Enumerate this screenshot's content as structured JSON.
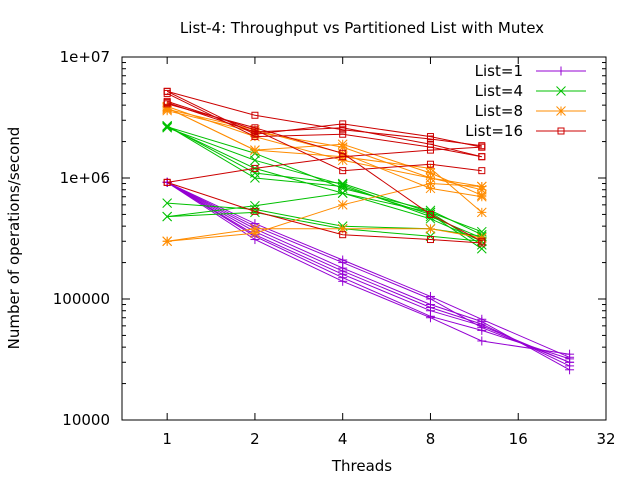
{
  "chart_data": {
    "type": "line",
    "title": "List-4: Throughput vs Partitioned List with Mutex",
    "xlabel": "Threads",
    "ylabel": "Number of operations/second",
    "xscale": "log2",
    "yscale": "log10",
    "xlim": [
      0.7,
      32
    ],
    "ylim": [
      10000,
      10000000
    ],
    "xticks": [
      {
        "value": 1,
        "label": "1"
      },
      {
        "value": 2,
        "label": "2"
      },
      {
        "value": 4,
        "label": "4"
      },
      {
        "value": 8,
        "label": "8"
      },
      {
        "value": 16,
        "label": "16"
      },
      {
        "value": 32,
        "label": "32"
      }
    ],
    "yticks": [
      {
        "value": 10000,
        "label": "10000"
      },
      {
        "value": 100000,
        "label": "100000"
      },
      {
        "value": 1000000,
        "label": "1e+06"
      },
      {
        "value": 10000000,
        "label": "1e+07"
      }
    ],
    "grid": false,
    "legend_position": "top-right",
    "series": [
      {
        "name": "List=1",
        "color": "#9400d3",
        "marker": "plus",
        "x": [
          1,
          2,
          4,
          8,
          12,
          24
        ],
        "lines": [
          [
            920000,
            310000,
            140000,
            70000,
            45000,
            35000
          ],
          [
            920000,
            330000,
            150000,
            72000,
            55000,
            32000
          ],
          [
            920000,
            340000,
            160000,
            80000,
            60000,
            30000
          ],
          [
            920000,
            360000,
            170000,
            85000,
            62000,
            28000
          ],
          [
            920000,
            380000,
            180000,
            90000,
            65000,
            26000
          ],
          [
            920000,
            400000,
            200000,
            100000,
            58000,
            30000
          ],
          [
            920000,
            420000,
            210000,
            105000,
            68000,
            33000
          ]
        ]
      },
      {
        "name": "List=4",
        "color": "#00c000",
        "marker": "x",
        "x": [
          1,
          2,
          4,
          8,
          12
        ],
        "lines": [
          [
            620000,
            550000,
            400000,
            380000,
            330000
          ],
          [
            480000,
            590000,
            750000,
            520000,
            360000
          ],
          [
            480000,
            520000,
            380000,
            330000,
            300000
          ],
          [
            2700000,
            1000000,
            850000,
            500000,
            260000
          ],
          [
            2700000,
            1100000,
            900000,
            520000,
            280000
          ],
          [
            2650000,
            1200000,
            750000,
            460000,
            300000
          ],
          [
            2650000,
            1600000,
            820000,
            540000,
            340000
          ],
          [
            2600000,
            1400000,
            880000,
            480000,
            320000
          ]
        ]
      },
      {
        "name": "List=8",
        "color": "#ff8c00",
        "marker": "star",
        "x": [
          1,
          2,
          4,
          8,
          12
        ],
        "lines": [
          [
            300000,
            380000,
            380000,
            380000,
            320000
          ],
          [
            300000,
            350000,
            600000,
            900000,
            850000
          ],
          [
            3600000,
            2400000,
            1800000,
            1000000,
            850000
          ],
          [
            3800000,
            1700000,
            1900000,
            1100000,
            720000
          ],
          [
            3800000,
            1700000,
            1500000,
            1200000,
            520000
          ],
          [
            3700000,
            2500000,
            1600000,
            820000,
            700000
          ],
          [
            3900000,
            2200000,
            1400000,
            1000000,
            800000
          ]
        ]
      },
      {
        "name": "List=16",
        "color": "#cc0000",
        "marker": "square",
        "x": [
          1,
          2,
          4,
          8,
          12
        ],
        "lines": [
          [
            5200000,
            3300000,
            2500000,
            2100000,
            1850000
          ],
          [
            5200000,
            2300000,
            2800000,
            2200000,
            1800000
          ],
          [
            4200000,
            2400000,
            2600000,
            1900000,
            1500000
          ],
          [
            4300000,
            2500000,
            1150000,
            1300000,
            1150000
          ],
          [
            920000,
            1200000,
            1500000,
            1700000,
            1800000
          ],
          [
            920000,
            530000,
            340000,
            310000,
            290000
          ],
          [
            4100000,
            2600000,
            1600000,
            500000,
            300000
          ],
          [
            5000000,
            2200000,
            2300000,
            1800000,
            1500000
          ]
        ]
      }
    ]
  }
}
